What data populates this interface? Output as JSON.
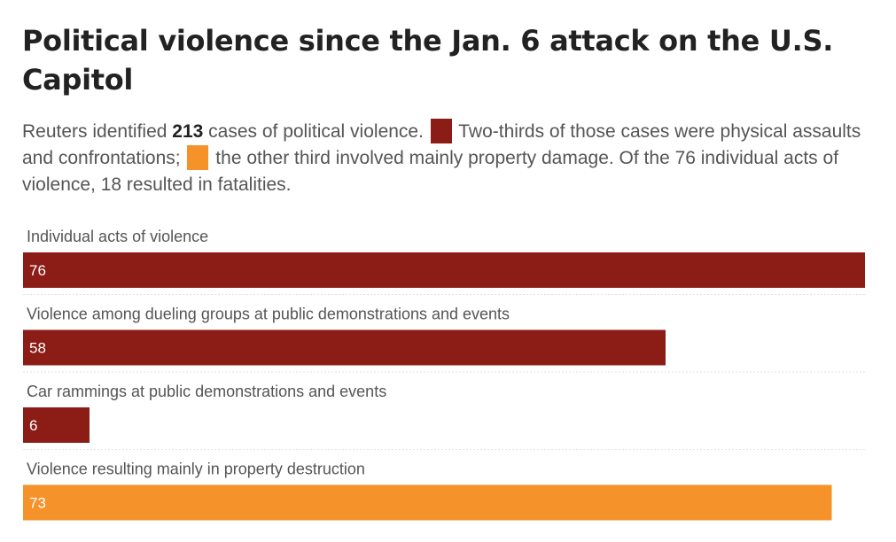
{
  "title": "Political violence since the Jan. 6 attack on the U.S. Capitol",
  "subtitle": {
    "part1": "Reuters identified ",
    "total_cases": "213",
    "part2": " cases of political violence. ",
    "part3": " Two-thirds of those cases were physical assaults and confrontations; ",
    "part4": " the other third involved mainly property damage. Of the 76 individual acts of violence, 18 resulted in fatalities."
  },
  "colors": {
    "physical": "#8b1c16",
    "property": "#f5922a"
  },
  "chart_data": {
    "type": "bar",
    "orientation": "horizontal",
    "categories": [
      "Individual acts of violence",
      "Violence among dueling groups at public demonstrations and events",
      "Car rammings at public demonstrations and events",
      "Violence resulting mainly in property destruction"
    ],
    "values": [
      76,
      58,
      6,
      73
    ],
    "groups": [
      "physical",
      "physical",
      "physical",
      "property"
    ],
    "xlim": [
      0,
      76
    ],
    "title": "Political violence since the Jan. 6 attack on the U.S. Capitol",
    "xlabel": "",
    "ylabel": "",
    "grid": false
  }
}
